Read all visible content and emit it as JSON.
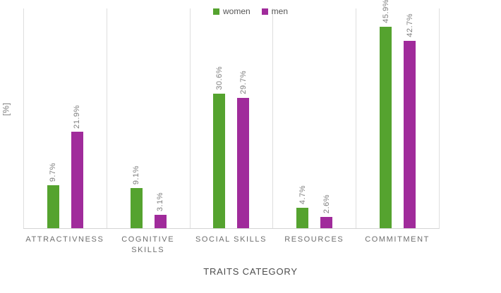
{
  "chart_data": {
    "type": "bar",
    "categories": [
      "ATTRACTIVNESS",
      "COGNITIVE SKILLS",
      "SOCIAL SKILLS",
      "RESOURCES",
      "COMMITMENT"
    ],
    "series": [
      {
        "name": "women",
        "color": "#55a32f",
        "values": [
          9.7,
          9.1,
          30.6,
          4.7,
          45.9
        ],
        "value_labels": [
          "9.7%",
          "9.1%",
          "30.6%",
          "4.7%",
          "45.9%"
        ]
      },
      {
        "name": "men",
        "color": "#a02b9b",
        "values": [
          21.9,
          3.1,
          29.7,
          2.6,
          42.7
        ],
        "value_labels": [
          "21.9%",
          "3.1%",
          "29.7%",
          "2.6%",
          "42.7%"
        ]
      }
    ],
    "xlabel": "TRAITS CATEGORY",
    "ylabel": "[%]",
    "ylim": [
      0,
      50
    ],
    "grid": "vertical-only",
    "legend_position": "top-center",
    "value_label_rotation": 90,
    "colors": {
      "gridline": "#dedede",
      "axis_line": "#d4d4d4",
      "value_label_text": "#7f7f7f",
      "category_label_text": "#6f6f6f",
      "axis_title_text": "#4c4c4c",
      "legend_text": "#555555",
      "background": "#ffffff"
    }
  }
}
